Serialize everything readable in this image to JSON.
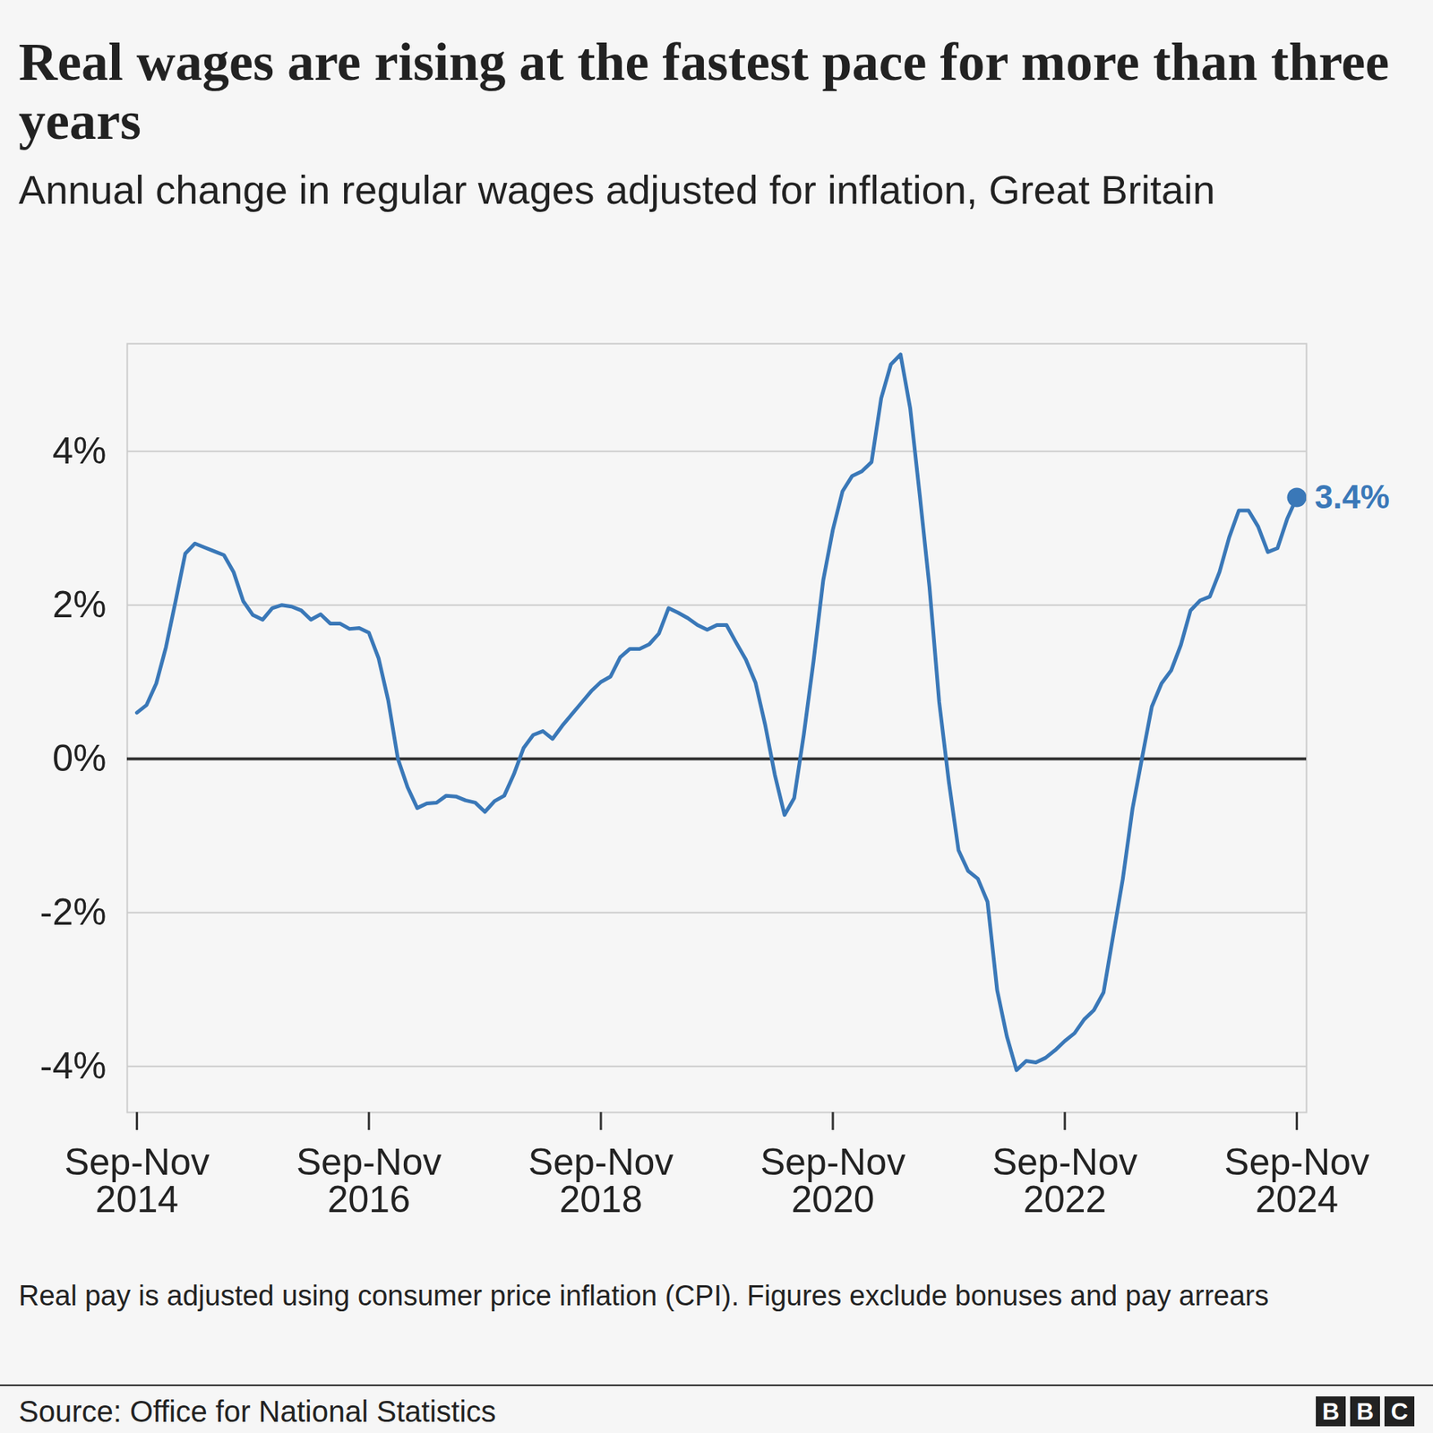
{
  "chart_data": {
    "type": "line",
    "title": "Real wages are rising at the fastest pace for more than three years",
    "subtitle": "Annual change in regular wages adjusted for inflation, Great Britain",
    "caption": "Real pay is adjusted using consumer price inflation (CPI). Figures exclude bonuses and pay arrears",
    "source": "Source: Office for National Statistics",
    "logo": "BBC",
    "color": "#3a78b8",
    "grid": true,
    "categories": [
      "Sep-Nov 2014",
      null,
      null,
      null,
      null,
      null,
      null,
      null,
      null,
      null,
      null,
      null,
      null,
      null,
      null,
      null,
      null,
      null,
      null,
      null,
      null,
      null,
      null,
      null,
      "Sep-Nov 2016",
      null,
      null,
      null,
      null,
      null,
      null,
      null,
      null,
      null,
      null,
      null,
      null,
      null,
      null,
      null,
      null,
      null,
      null,
      null,
      null,
      null,
      null,
      null,
      "Sep-Nov 2018",
      null,
      null,
      null,
      null,
      null,
      null,
      null,
      null,
      null,
      null,
      null,
      null,
      null,
      null,
      null,
      null,
      null,
      null,
      null,
      null,
      null,
      null,
      null,
      "Sep-Nov 2020",
      null,
      null,
      null,
      null,
      null,
      null,
      null,
      null,
      null,
      null,
      null,
      null,
      null,
      null,
      null,
      null,
      null,
      null,
      null,
      null,
      null,
      null,
      null,
      "Sep-Nov 2022",
      null,
      null,
      null,
      null,
      null,
      null,
      null,
      null,
      null,
      null,
      null,
      null,
      null,
      null,
      null,
      null,
      null,
      null,
      null,
      null,
      null,
      null,
      null,
      "Sep-Nov 2024"
    ],
    "values": [
      0.6,
      0.7,
      0.98,
      1.45,
      2.05,
      2.67,
      2.8,
      2.75,
      2.7,
      2.65,
      2.43,
      2.05,
      1.87,
      1.81,
      1.96,
      2.0,
      1.98,
      1.93,
      1.81,
      1.88,
      1.76,
      1.76,
      1.69,
      1.7,
      1.64,
      1.31,
      0.76,
      0.0,
      -0.37,
      -0.64,
      -0.58,
      -0.57,
      -0.48,
      -0.49,
      -0.54,
      -0.57,
      -0.69,
      -0.55,
      -0.48,
      -0.2,
      0.14,
      0.31,
      0.36,
      0.26,
      0.43,
      0.58,
      0.73,
      0.88,
      1.0,
      1.07,
      1.32,
      1.43,
      1.43,
      1.49,
      1.63,
      1.96,
      1.9,
      1.83,
      1.74,
      1.68,
      1.74,
      1.74,
      1.51,
      1.29,
      0.99,
      0.44,
      -0.21,
      -0.73,
      -0.51,
      0.32,
      1.27,
      2.32,
      2.98,
      3.48,
      3.68,
      3.74,
      3.86,
      4.69,
      5.13,
      5.26,
      4.56,
      3.42,
      2.23,
      0.74,
      -0.3,
      -1.19,
      -1.46,
      -1.56,
      -1.86,
      -3.01,
      -3.61,
      -4.05,
      -3.93,
      -3.95,
      -3.89,
      -3.79,
      -3.67,
      -3.57,
      -3.39,
      -3.27,
      -3.04,
      -2.3,
      -1.56,
      -0.65,
      0.02,
      0.68,
      0.98,
      1.15,
      1.48,
      1.93,
      2.06,
      2.11,
      2.43,
      2.88,
      3.23,
      3.23,
      3.02,
      2.69,
      2.74,
      3.12,
      3.4
    ],
    "ylim": [
      -4.6,
      5.4
    ],
    "yticks": [
      {
        "value": -4,
        "label": "-4%"
      },
      {
        "value": -2,
        "label": "-2%"
      },
      {
        "value": 0,
        "label": "0%"
      },
      {
        "value": 2,
        "label": "2%"
      },
      {
        "value": 4,
        "label": "4%"
      }
    ],
    "annotations": [
      {
        "label": "3.4%",
        "value": 3.4
      }
    ]
  }
}
